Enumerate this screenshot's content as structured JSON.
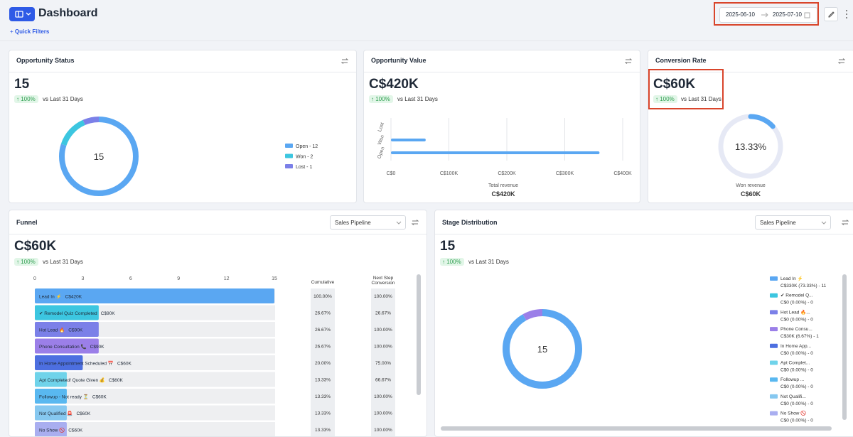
{
  "header": {
    "title": "Dashboard",
    "quick_filters": "Quick Filters",
    "date_start": "2025-06-10",
    "date_end": "2025-07-10"
  },
  "opportunity_status": {
    "title": "Opportunity Status",
    "value": "15",
    "change": "100%",
    "compare": "vs Last 31 Days",
    "chart_data": {
      "type": "donut",
      "center": "15",
      "segments": [
        {
          "name": "Open - 12",
          "value": 12,
          "color": "#5aa7f2"
        },
        {
          "name": "Won - 2",
          "value": 2,
          "color": "#3cc6e0"
        },
        {
          "name": "Lost - 1",
          "value": 1,
          "color": "#7b80e8"
        }
      ]
    }
  },
  "opportunity_value": {
    "title": "Opportunity Value",
    "value": "C$420K",
    "change": "100%",
    "compare": "vs Last 31 Days",
    "chart_data": {
      "type": "hbar",
      "categories": [
        "Lost",
        "Won",
        "Open"
      ],
      "values": [
        0,
        60000,
        360000
      ],
      "color": "#5aa7f2",
      "xlim": [
        0,
        400000
      ],
      "xticks": [
        {
          "value": 0,
          "label": "C$0"
        },
        {
          "value": 100000,
          "label": "C$100K"
        },
        {
          "value": 200000,
          "label": "C$200K"
        },
        {
          "value": 300000,
          "label": "C$300K"
        },
        {
          "value": 400000,
          "label": "C$400K"
        }
      ],
      "grid": true,
      "x_label": "Total revenue",
      "total": "C$420K"
    }
  },
  "conversion_rate": {
    "title": "Conversion Rate",
    "value": "C$60K",
    "change": "100%",
    "compare": "vs Last 31 Days",
    "chart_data": {
      "type": "gauge",
      "value": 13.33,
      "label": "13.33%",
      "color": "#5aa7f2",
      "track_color": "#e6e9f5",
      "x_label": "Won revenue",
      "total": "C$60K"
    }
  },
  "funnel": {
    "title": "Funnel",
    "dropdown": "Sales Pipeline",
    "value": "C$60K",
    "change": "100%",
    "compare": "vs Last 31 Days",
    "cumulative_header": "Cumulative",
    "next_header": "Next Step Conversion",
    "chart_data": {
      "type": "funnel",
      "xlim": [
        0,
        15
      ],
      "xticks": [
        0,
        3,
        6,
        9,
        12,
        15
      ],
      "rows": [
        {
          "label": "Lead In ⚡",
          "amount": "C$420K",
          "count": 15,
          "color": "#5aa7f2",
          "cumulative": "100.00%",
          "next": "100.00%"
        },
        {
          "label": "✔ Remodel Quiz Completed",
          "amount": "C$90K",
          "count": 4,
          "color": "#3cc6e0",
          "cumulative": "26.67%",
          "next": "26.67%"
        },
        {
          "label": "Hot Lead 🔥",
          "amount": "C$90K",
          "count": 4,
          "color": "#7b80e8",
          "cumulative": "26.67%",
          "next": "100.00%"
        },
        {
          "label": "Phone Consultation 📞",
          "amount": "C$90K",
          "count": 4,
          "color": "#9b7fe8",
          "cumulative": "26.67%",
          "next": "100.00%"
        },
        {
          "label": "In Home Appointment Scheduled 📅",
          "amount": "C$60K",
          "count": 3,
          "color": "#4d6fe0",
          "cumulative": "20.00%",
          "next": "75.00%"
        },
        {
          "label": "Apt Completed/ Quote Given 💰",
          "amount": "C$60K",
          "count": 2,
          "color": "#6fd3ea",
          "cumulative": "13.33%",
          "next": "66.67%"
        },
        {
          "label": "Followup - Not ready ⏳",
          "amount": "C$60K",
          "count": 2,
          "color": "#59b8f0",
          "cumulative": "13.33%",
          "next": "100.00%"
        },
        {
          "label": "Not Qualified 🚨",
          "amount": "C$60K",
          "count": 2,
          "color": "#86c8f0",
          "cumulative": "13.33%",
          "next": "100.00%"
        },
        {
          "label": "No Show 🚫",
          "amount": "C$60K",
          "count": 2,
          "color": "#a9aef0",
          "cumulative": "13.33%",
          "next": "100.00%"
        }
      ]
    }
  },
  "stage_distribution": {
    "title": "Stage Distribution",
    "dropdown": "Sales Pipeline",
    "value": "15",
    "change": "100%",
    "compare": "vs Last 31 Days",
    "chart_data": {
      "type": "donut",
      "center": "15",
      "segments": [
        {
          "name": "Lead In ⚡",
          "label": "C$330K (73.33%) - 11",
          "value": 11,
          "color": "#5aa7f2"
        },
        {
          "name": "✔ Remodel Q...",
          "label": "C$0 (0.00%) - 0",
          "value": 0,
          "color": "#3cc6e0"
        },
        {
          "name": "Hot Lead 🔥...",
          "label": "C$0 (0.00%) - 0",
          "value": 0,
          "color": "#7b80e8"
        },
        {
          "name": "Phone Consu...",
          "label": "C$30K (6.67%) - 1",
          "value": 1,
          "color": "#9b7fe8"
        },
        {
          "name": "In Home App...",
          "label": "C$0 (0.00%) - 0",
          "value": 0,
          "color": "#4d6fe0"
        },
        {
          "name": "Apt Complet...",
          "label": "C$0 (0.00%) - 0",
          "value": 0,
          "color": "#6fd3ea"
        },
        {
          "name": "Followup ...",
          "label": "C$0 (0.00%) - 0",
          "value": 0,
          "color": "#59b8f0"
        },
        {
          "name": "Not Qualifi...",
          "label": "C$0 (0.00%) - 0",
          "value": 0,
          "color": "#86c8f0"
        },
        {
          "name": "No Show 🚫",
          "label": "C$0 (0.00%) - 0",
          "value": 0,
          "color": "#a9aef0"
        }
      ]
    }
  }
}
